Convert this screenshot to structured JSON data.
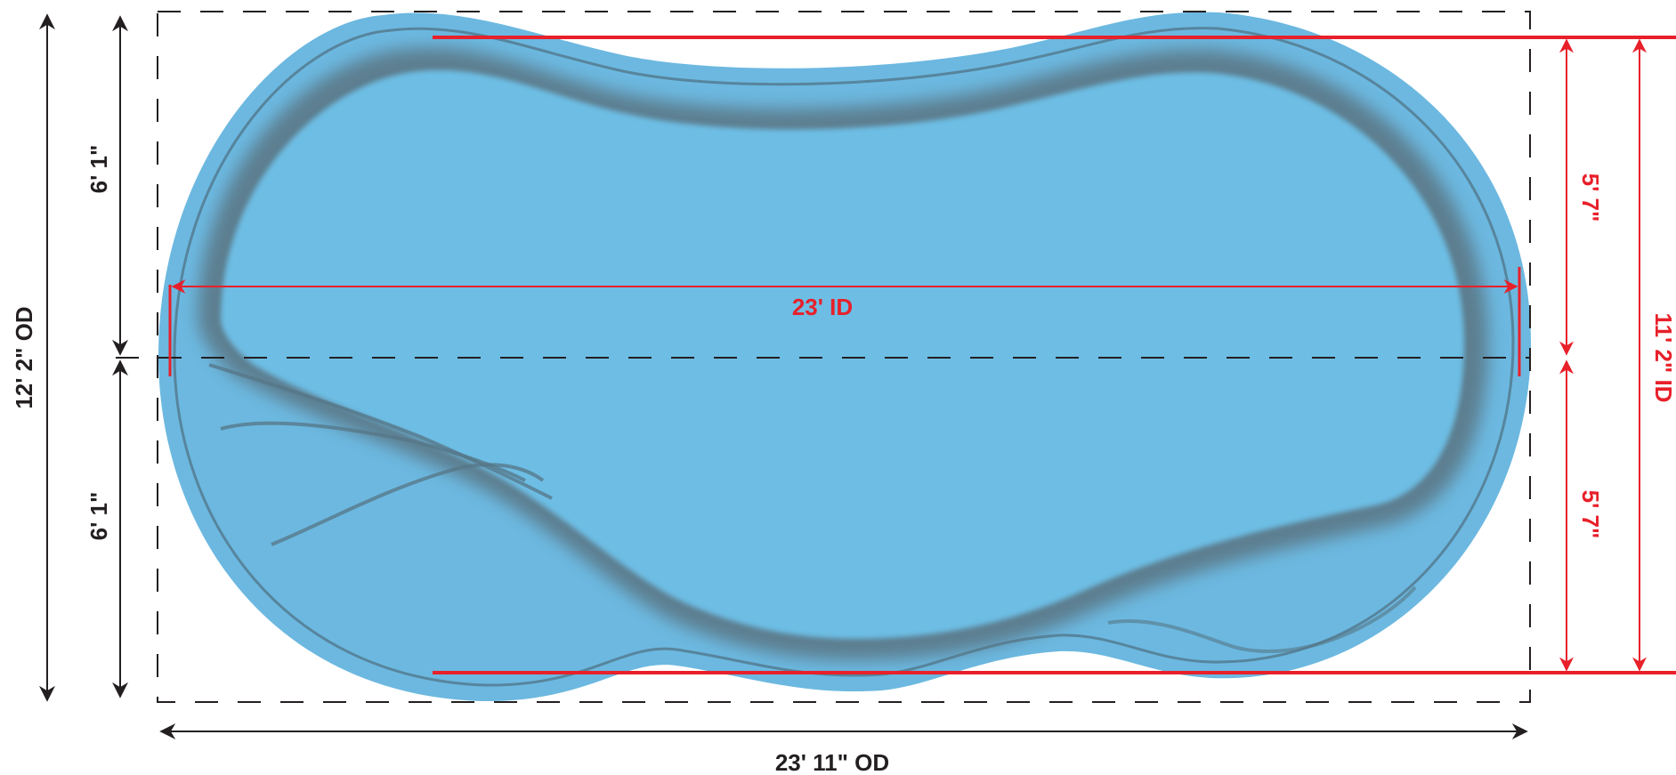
{
  "title": "",
  "dimensions": {
    "outer_length": "23' 11\" OD",
    "outer_width": "12' 2\" OD",
    "half_width_top": "6' 1\"",
    "half_width_bottom": "6' 1\"",
    "inner_length": "23' ID",
    "inner_width": "11' 2\" ID",
    "inner_half_top": "5' 7\"",
    "inner_half_bottom": "5' 7\""
  },
  "colors": {
    "pool_rim": "#6cb8e0",
    "pool_water": "#6dbde4",
    "pool_wall_shadow": "#5c7a88",
    "dimension_red": "#e8202a",
    "dimension_black": "#231f20"
  }
}
